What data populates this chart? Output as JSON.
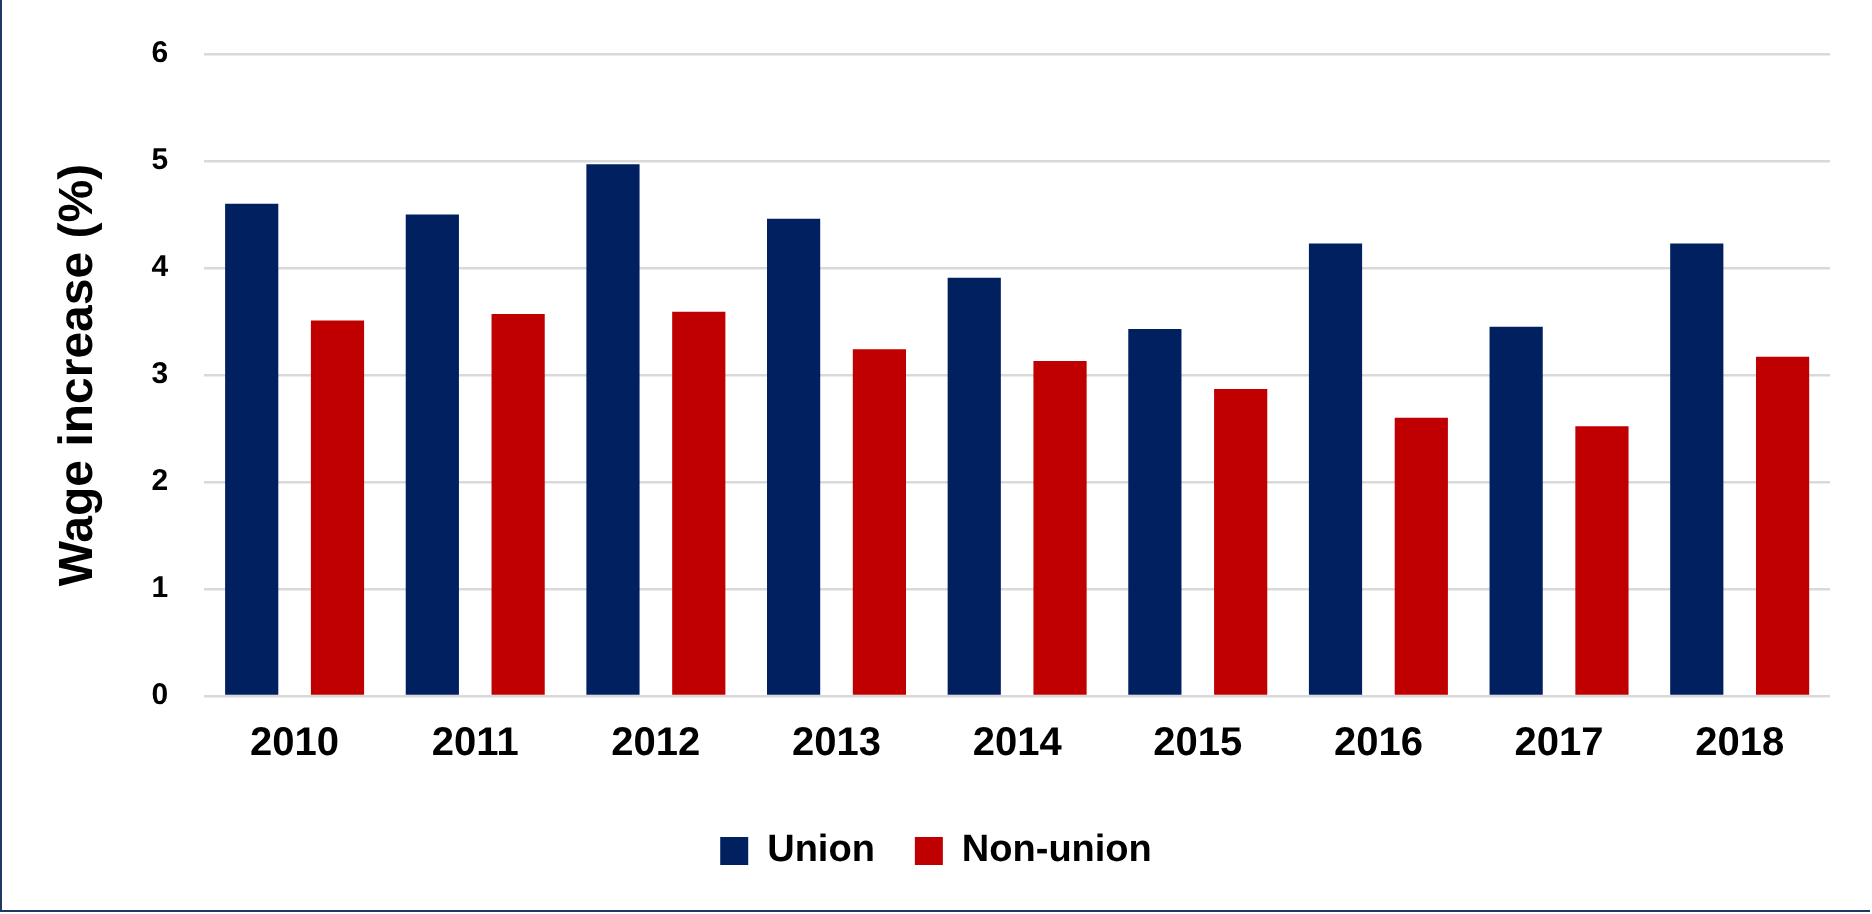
{
  "chart_data": {
    "type": "bar",
    "ylabel": "Wage increase (%)",
    "categories": [
      "2010",
      "2011",
      "2012",
      "2013",
      "2014",
      "2015",
      "2016",
      "2017",
      "2018"
    ],
    "series": [
      {
        "name": "Union",
        "color": "#002060",
        "values": [
          4.6,
          4.5,
          4.97,
          4.46,
          3.91,
          3.43,
          4.23,
          3.45,
          4.23
        ]
      },
      {
        "name": "Non-union",
        "color": "#c00000",
        "values": [
          3.51,
          3.57,
          3.59,
          3.24,
          3.13,
          2.87,
          2.6,
          2.52,
          3.17
        ]
      }
    ],
    "ylim": [
      0,
      6
    ],
    "yticks": [
      0,
      1,
      2,
      3,
      4,
      5,
      6
    ],
    "grid": "y",
    "legend": "bottom"
  }
}
